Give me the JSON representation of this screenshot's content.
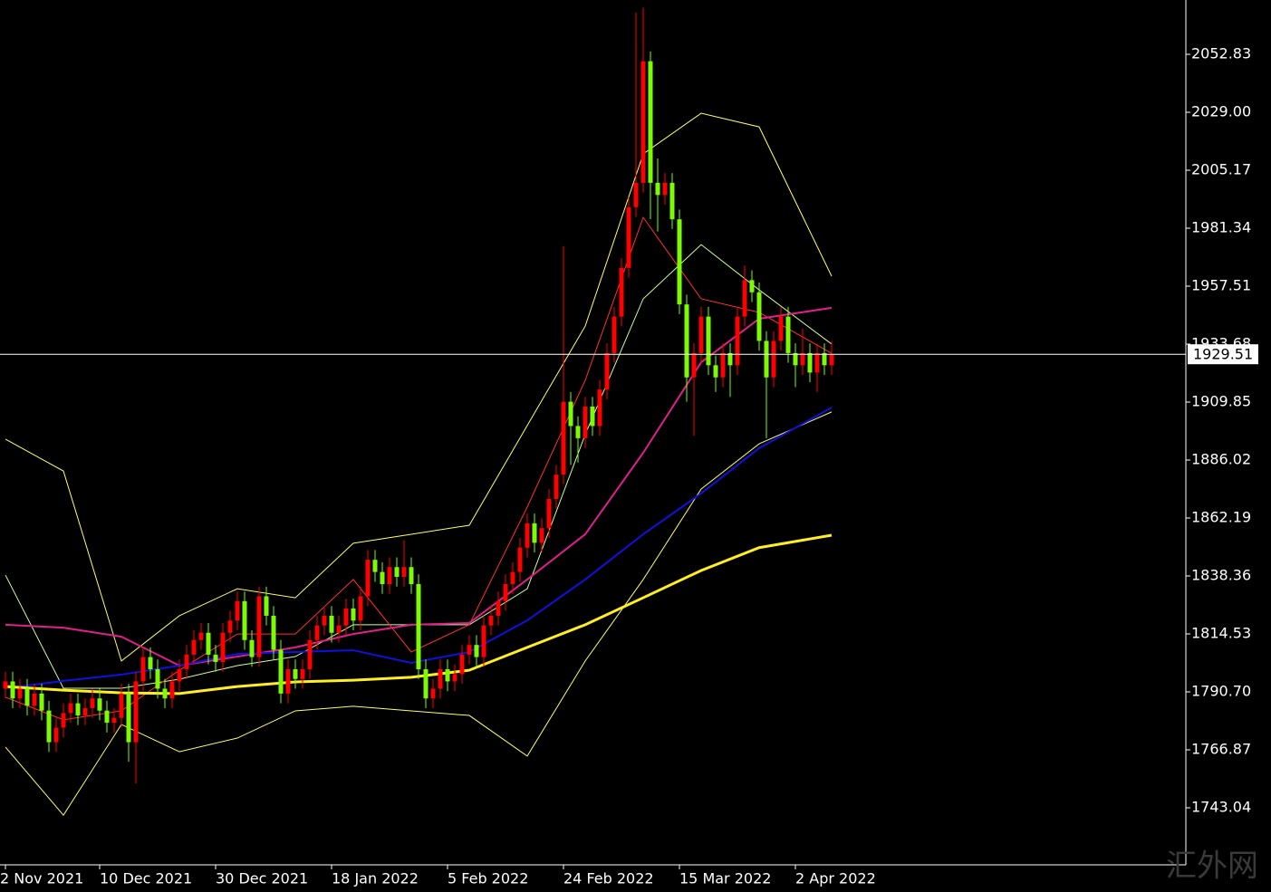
{
  "chart_data": {
    "type": "candlestick",
    "categories": [
      "2 Nov 2021",
      null,
      null,
      null,
      null,
      null,
      null,
      null,
      null,
      null,
      null,
      null,
      null,
      "10 Dec 2021",
      null,
      null,
      null,
      null,
      null,
      null,
      null,
      null,
      null,
      null,
      null,
      null,
      null,
      null,
      null,
      "30 Dec 2021",
      null,
      null,
      null,
      null,
      null,
      null,
      null,
      null,
      null,
      null,
      null,
      null,
      null,
      null,
      null,
      "18 Jan 2022",
      null,
      null,
      null,
      null,
      null,
      null,
      null,
      null,
      null,
      null,
      null,
      null,
      null,
      null,
      null,
      "5 Feb 2022",
      null,
      null,
      null,
      null,
      null,
      null,
      null,
      null,
      null,
      null,
      null,
      null,
      null,
      null,
      null,
      "24 Feb 2022",
      null,
      null,
      null,
      null,
      null,
      null,
      null,
      null,
      null,
      null,
      null,
      null,
      null,
      null,
      null,
      "15 Mar 2022",
      null,
      null,
      null,
      null,
      null,
      null,
      null,
      null,
      null,
      null,
      null,
      null,
      null,
      null,
      null,
      "2 Apr 2022",
      null,
      null,
      null,
      null,
      null
    ],
    "open": [
      1792,
      1795,
      1788,
      1792,
      1785,
      1790,
      1783,
      1770,
      1776,
      1782,
      1786,
      1781,
      1784,
      1788,
      1783,
      1778,
      1780,
      1790,
      1770,
      1795,
      1805,
      1800,
      1792,
      1788,
      1795,
      1800,
      1806,
      1812,
      1815,
      1806,
      1803,
      1815,
      1820,
      1828,
      1812,
      1805,
      1830,
      1822,
      1808,
      1790,
      1800,
      1796,
      1800,
      1812,
      1818,
      1822,
      1815,
      1818,
      1825,
      1820,
      1830,
      1845,
      1840,
      1835,
      1842,
      1838,
      1842,
      1835,
      1800,
      1788,
      1792,
      1800,
      1795,
      1798,
      1806,
      1810,
      1805,
      1818,
      1822,
      1828,
      1835,
      1840,
      1850,
      1860,
      1852,
      1858,
      1870,
      1880,
      1910,
      1900,
      1895,
      1908,
      1900,
      1915,
      1930,
      1945,
      1965,
      1990,
      2000,
      2050,
      2000,
      1995,
      2000,
      1985,
      1950,
      1920,
      1930,
      1945,
      1925,
      1920,
      1930,
      1925,
      1945,
      1960,
      1955,
      1935,
      1920,
      1935,
      1945,
      1930,
      1925,
      1930,
      1922,
      1930,
      1925
    ],
    "high": [
      1799,
      1799,
      1796,
      1796,
      1794,
      1794,
      1787,
      1780,
      1786,
      1790,
      1790,
      1788,
      1792,
      1792,
      1787,
      1784,
      1794,
      1794,
      1799,
      1809,
      1809,
      1804,
      1796,
      1799,
      1804,
      1810,
      1816,
      1819,
      1819,
      1810,
      1819,
      1824,
      1832,
      1832,
      1816,
      1834,
      1834,
      1826,
      1812,
      1804,
      1804,
      1804,
      1816,
      1822,
      1826,
      1826,
      1822,
      1829,
      1829,
      1834,
      1849,
      1849,
      1844,
      1846,
      1846,
      1853,
      1846,
      1839,
      1804,
      1796,
      1804,
      1804,
      1802,
      1810,
      1814,
      1814,
      1822,
      1826,
      1832,
      1839,
      1844,
      1854,
      1864,
      1864,
      1862,
      1874,
      1884,
      1974,
      1914,
      1904,
      1912,
      1912,
      1919,
      1934,
      1949,
      1969,
      1994,
      2070,
      2072,
      2054,
      2010,
      2004,
      2004,
      1989,
      1954,
      1934,
      1949,
      1949,
      1929,
      1934,
      1934,
      1949,
      1966,
      1964,
      1959,
      1939,
      1939,
      1949,
      1949,
      1934,
      1940,
      1934,
      1934,
      1934,
      1935
    ],
    "low": [
      1788,
      1784,
      1784,
      1781,
      1781,
      1779,
      1766,
      1766,
      1772,
      1778,
      1777,
      1777,
      1780,
      1779,
      1774,
      1774,
      1776,
      1762,
      1753,
      1791,
      1796,
      1788,
      1784,
      1784,
      1791,
      1796,
      1802,
      1808,
      1802,
      1799,
      1799,
      1811,
      1816,
      1808,
      1801,
      1801,
      1818,
      1804,
      1786,
      1786,
      1792,
      1792,
      1796,
      1808,
      1814,
      1811,
      1811,
      1814,
      1816,
      1816,
      1826,
      1836,
      1831,
      1831,
      1834,
      1834,
      1831,
      1796,
      1784,
      1784,
      1788,
      1791,
      1791,
      1794,
      1802,
      1801,
      1801,
      1814,
      1818,
      1824,
      1831,
      1836,
      1846,
      1848,
      1848,
      1854,
      1866,
      1876,
      1884,
      1885,
      1891,
      1896,
      1896,
      1911,
      1926,
      1941,
      1961,
      1986,
      1996,
      1985,
      1980,
      1991,
      1981,
      1946,
      1910,
      1896,
      1926,
      1921,
      1914,
      1916,
      1912,
      1921,
      1941,
      1951,
      1931,
      1895,
      1916,
      1931,
      1926,
      1916,
      1921,
      1918,
      1914,
      1921,
      1921
    ],
    "close": [
      1795,
      1788,
      1792,
      1785,
      1790,
      1783,
      1770,
      1776,
      1782,
      1786,
      1781,
      1784,
      1788,
      1783,
      1778,
      1780,
      1790,
      1770,
      1795,
      1805,
      1800,
      1792,
      1788,
      1795,
      1800,
      1806,
      1812,
      1815,
      1806,
      1803,
      1815,
      1820,
      1828,
      1812,
      1805,
      1830,
      1822,
      1808,
      1790,
      1800,
      1796,
      1800,
      1812,
      1818,
      1822,
      1815,
      1818,
      1825,
      1820,
      1830,
      1845,
      1840,
      1835,
      1842,
      1838,
      1842,
      1835,
      1800,
      1788,
      1792,
      1800,
      1795,
      1798,
      1806,
      1810,
      1805,
      1818,
      1822,
      1828,
      1835,
      1840,
      1850,
      1860,
      1852,
      1858,
      1870,
      1880,
      1910,
      1900,
      1895,
      1908,
      1900,
      1915,
      1930,
      1945,
      1965,
      1990,
      2000,
      2050,
      2000,
      1995,
      2000,
      1985,
      1950,
      1920,
      1930,
      1945,
      1925,
      1920,
      1930,
      1925,
      1945,
      1960,
      1955,
      1935,
      1920,
      1935,
      1945,
      1930,
      1925,
      1930,
      1922,
      1930,
      1925,
      1929.51
    ],
    "up_color": "#ff0000",
    "down_color": "#7cfc00",
    "series": [
      {
        "color": "#ffff66",
        "width": 1,
        "x": [
          0,
          8,
          16,
          24,
          32,
          40,
          48,
          56,
          64,
          72,
          80,
          88,
          96,
          104,
          114
        ],
        "values": [
          1894.6,
          1881.5,
          1803.4,
          1822,
          1833.1,
          1829.4,
          1851.8,
          1855.5,
          1859.2,
          1900.2,
          1941.1,
          2011.9,
          2028.6,
          2023,
          1961.6
        ]
      },
      {
        "color": "#ffff66",
        "width": 1,
        "x": [
          0,
          8,
          16,
          24,
          32,
          40,
          48,
          56,
          64,
          72,
          80,
          88,
          96,
          104,
          114
        ],
        "values": [
          1768,
          1740,
          1777.3,
          1766.1,
          1771.7,
          1782.9,
          1784.8,
          1782.9,
          1781,
          1764.3,
          1803.4,
          1836.9,
          1874.1,
          1892.7,
          1905.8
        ]
      },
      {
        "color": "#ccff99",
        "width": 1,
        "x": [
          0,
          8,
          16,
          24,
          32,
          40,
          48,
          56,
          64,
          72,
          80,
          88,
          96,
          104,
          114
        ],
        "values": [
          1838.7,
          1792.2,
          1792.2,
          1795.9,
          1801.5,
          1805.2,
          1818.3,
          1818.3,
          1818.3,
          1833.1,
          1896.5,
          1952.3,
          1974.6,
          1956,
          1933.7
        ]
      },
      {
        "color": "#ff3030",
        "width": 1,
        "x": [
          0,
          8,
          16,
          24,
          32,
          40,
          48,
          56,
          64,
          72,
          80,
          88,
          96,
          104,
          114
        ],
        "values": [
          1788.5,
          1779.2,
          1782.9,
          1799.6,
          1814.5,
          1814.5,
          1836.9,
          1807.1,
          1818.3,
          1866.7,
          1918.8,
          1985.8,
          1952.3,
          1946.7,
          1929.9
        ]
      },
      {
        "color": "#e0208c",
        "width": 2,
        "x": [
          0,
          8,
          16,
          24,
          32,
          40,
          48,
          56,
          64,
          72,
          80,
          88,
          96,
          104,
          114
        ],
        "values": [
          1818.3,
          1817.1,
          1813.4,
          1801.5,
          1805.2,
          1809,
          1814.5,
          1818.3,
          1819,
          1836.9,
          1855.5,
          1889,
          1926.2,
          1944.1,
          1948.6
        ]
      },
      {
        "color": "#1010e0",
        "width": 2,
        "x": [
          0,
          8,
          16,
          24,
          32,
          40,
          48,
          56,
          64,
          72,
          80,
          88,
          96,
          104,
          114
        ],
        "values": [
          1792.2,
          1795.2,
          1797.8,
          1801.5,
          1806.3,
          1807.1,
          1807.8,
          1802.6,
          1807.1,
          1820.1,
          1836.9,
          1855.5,
          1872.3,
          1890.9,
          1907.6
        ]
      },
      {
        "color": "#ffee22",
        "width": 3,
        "x": [
          0,
          8,
          16,
          24,
          32,
          40,
          48,
          56,
          64,
          72,
          80,
          88,
          96,
          104,
          114
        ],
        "values": [
          1792.9,
          1791.4,
          1790.3,
          1790,
          1792.9,
          1794.8,
          1795.5,
          1796.7,
          1799.6,
          1809,
          1818.3,
          1829.4,
          1840.6,
          1850,
          1855.1
        ]
      }
    ],
    "ylim": [
      1719.58,
      2075.17
    ],
    "yticks": [
      1743.04,
      1766.87,
      {
        "value": 1790.7,
        "label": "1790.70"
      },
      1814.53,
      1838.36,
      1862.19,
      1886.02,
      1909.85,
      1933.68,
      1957.51,
      1981.34,
      2005.17,
      {
        "value": 2029,
        "label": "2029.00"
      },
      2052.83
    ],
    "current_price": 1929.51,
    "watermark": "汇外网"
  }
}
